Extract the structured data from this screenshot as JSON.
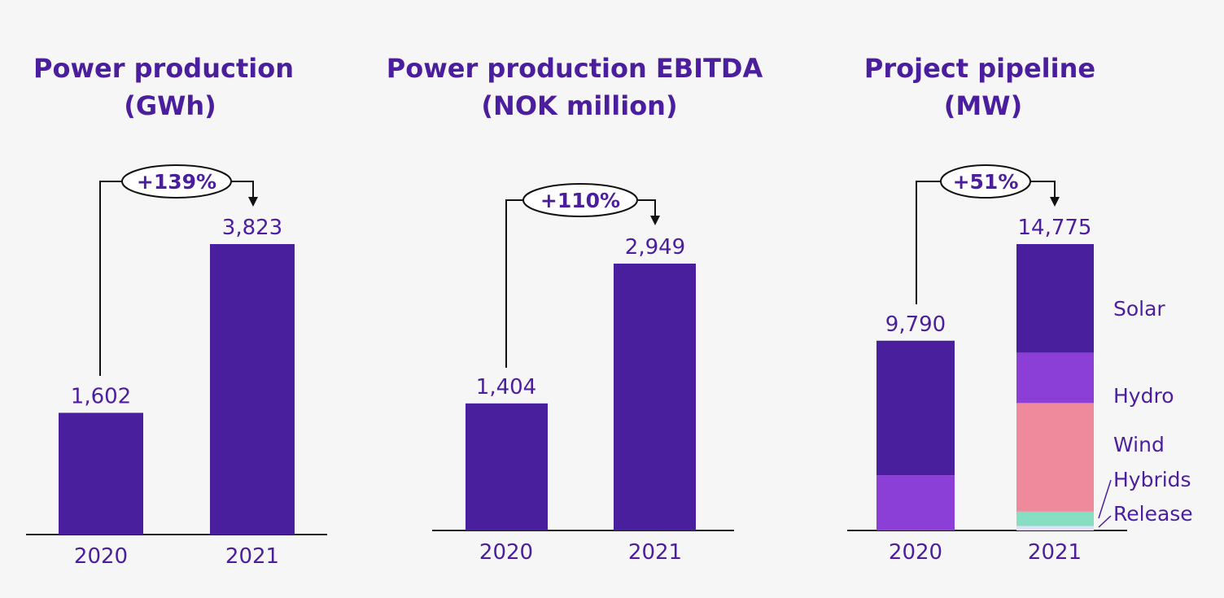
{
  "colors": {
    "bar": "#4a1f9e",
    "text": "#4b1e9e",
    "solar": "#4a1f9e",
    "hydro": "#8b3fd6",
    "wind": "#ee8a9b",
    "hybrids": "#86dfc2",
    "release": "#e3defa",
    "axis": "#222222"
  },
  "chart_data": [
    {
      "type": "bar",
      "title_lines": [
        "Power production",
        "(GWh)"
      ],
      "categories": [
        "2020",
        "2021"
      ],
      "values": [
        1602,
        3823
      ],
      "value_labels": [
        "1,602",
        "3,823"
      ],
      "growth_label": "+139%"
    },
    {
      "type": "bar",
      "title_lines": [
        "Power production EBITDA",
        "(NOK million)"
      ],
      "categories": [
        "2020",
        "2021"
      ],
      "values": [
        1404,
        2949
      ],
      "value_labels": [
        "1,404",
        "2,949"
      ],
      "growth_label": "+110%"
    },
    {
      "type": "bar",
      "stacked": true,
      "title_lines": [
        "Project pipeline",
        "(MW)"
      ],
      "categories": [
        "2020",
        "2021"
      ],
      "totals": [
        9790,
        14775
      ],
      "value_labels": [
        "9,790",
        "14,775"
      ],
      "growth_label": "+51%",
      "series": [
        {
          "name": "Release",
          "color_key": "release",
          "values": [
            0,
            230
          ]
        },
        {
          "name": "Hybrids",
          "color_key": "hybrids",
          "values": [
            0,
            745
          ]
        },
        {
          "name": "Wind",
          "color_key": "wind",
          "values": [
            0,
            5600
          ]
        },
        {
          "name": "Hydro",
          "color_key": "hydro",
          "values": [
            2850,
            2600
          ]
        },
        {
          "name": "Solar",
          "color_key": "solar",
          "values": [
            6940,
            5600
          ]
        }
      ]
    }
  ]
}
